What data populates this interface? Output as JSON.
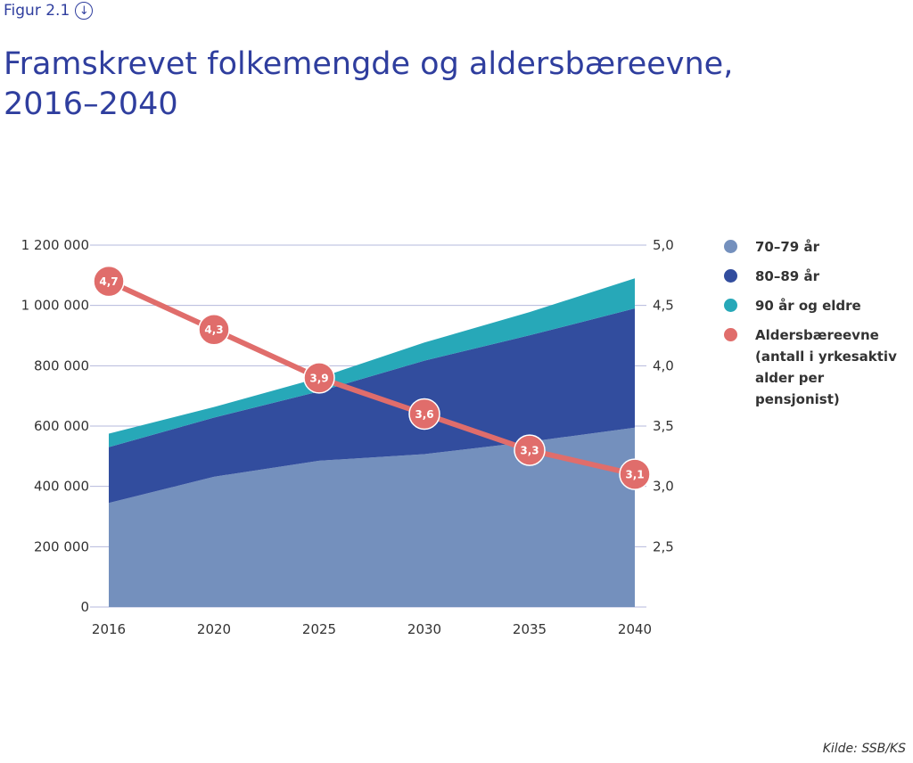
{
  "figure_label": "Figur 2.1",
  "figure_icon": "download-icon",
  "title": "Framskrevet folkemengde og aldersbæreevne, 2016–2040",
  "source": "Kilde: SSB/KS",
  "colors": {
    "age_70_79": "#7490bd",
    "age_80_89": "#324d9e",
    "age_90_plus": "#27a8b8",
    "line": "#e06d6b",
    "grid": "#b4b8dc",
    "title": "#2f3e9e"
  },
  "chart_data": {
    "type": "area",
    "categories": [
      "2016",
      "2020",
      "2025",
      "2030",
      "2035",
      "2040"
    ],
    "left_axis": {
      "ylim": [
        0,
        1200000
      ],
      "ticks": [
        0,
        200000,
        400000,
        600000,
        800000,
        1000000,
        1200000
      ],
      "tick_labels": [
        "0",
        "200 000",
        "400 000",
        "600 000",
        "800 000",
        "1 000 000",
        "1 200 000"
      ]
    },
    "right_axis": {
      "ylim": [
        2.0,
        5.0
      ],
      "ticks": [
        2.5,
        3.0,
        3.5,
        4.0,
        4.5,
        5.0
      ],
      "tick_labels": [
        "2,5",
        "3,0",
        "3,5",
        "4,0",
        "4,5",
        "5,0"
      ]
    },
    "series": [
      {
        "name": "70–79 år",
        "type": "stacked-area",
        "values": [
          345000,
          432000,
          485000,
          507000,
          548000,
          595000
        ]
      },
      {
        "name": "80–89 år",
        "type": "stacked-area",
        "values": [
          185000,
          196000,
          230000,
          310000,
          353000,
          395000
        ]
      },
      {
        "name": "90 år og eldre",
        "type": "stacked-area",
        "values": [
          45000,
          35000,
          45000,
          60000,
          77000,
          100000
        ]
      },
      {
        "name": "Aldersbæreevne",
        "type": "line",
        "axis": "right",
        "values": [
          4.7,
          4.3,
          3.9,
          3.6,
          3.3,
          3.1
        ],
        "labels": [
          "4,7",
          "4,3",
          "3,9",
          "3,6",
          "3,3",
          "3,1"
        ]
      }
    ],
    "legend": [
      {
        "label": "70–79 år",
        "color_key": "age_70_79"
      },
      {
        "label": "80–89 år",
        "color_key": "age_80_89"
      },
      {
        "label": "90 år og eldre",
        "color_key": "age_90_plus"
      },
      {
        "label": "Aldersbæreevne (antall i yrkesaktiv alder per pensjonist)",
        "color_key": "line"
      }
    ],
    "legend_position": "right",
    "grid": true
  }
}
